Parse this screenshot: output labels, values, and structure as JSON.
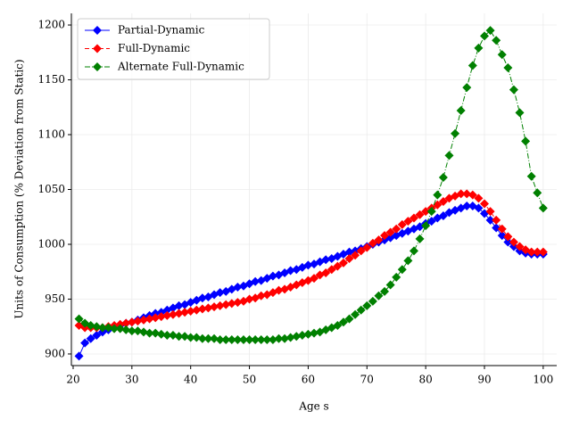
{
  "chart_data": {
    "type": "line",
    "xlabel": "Age s",
    "ylabel": "Units of Consumption (% Deviation from Static)",
    "x": [
      21,
      22,
      23,
      24,
      25,
      26,
      27,
      28,
      29,
      30,
      31,
      32,
      33,
      34,
      35,
      36,
      37,
      38,
      39,
      40,
      41,
      42,
      43,
      44,
      45,
      46,
      47,
      48,
      49,
      50,
      51,
      52,
      53,
      54,
      55,
      56,
      57,
      58,
      59,
      60,
      61,
      62,
      63,
      64,
      65,
      66,
      67,
      68,
      69,
      70,
      71,
      72,
      73,
      74,
      75,
      76,
      77,
      78,
      79,
      80,
      81,
      82,
      83,
      84,
      85,
      86,
      87,
      88,
      89,
      90,
      91,
      92,
      93,
      94,
      95,
      96,
      97,
      98,
      99,
      100
    ],
    "series": [
      {
        "name": "Partial-Dynamic",
        "color": "#0000ff",
        "dash": "",
        "values": [
          898,
          910,
          914,
          917,
          920,
          922,
          924,
          926,
          928,
          929,
          931,
          933,
          935,
          937,
          938,
          940,
          942,
          944,
          945,
          947,
          949,
          951,
          952,
          954,
          956,
          957,
          959,
          961,
          962,
          964,
          966,
          967,
          969,
          971,
          972,
          974,
          976,
          977,
          979,
          981,
          982,
          984,
          986,
          987,
          989,
          991,
          993,
          994,
          996,
          998,
          1000,
          1002,
          1004,
          1006,
          1008,
          1010,
          1012,
          1014,
          1016,
          1019,
          1021,
          1024,
          1026,
          1029,
          1031,
          1033,
          1035,
          1035,
          1033,
          1028,
          1022,
          1015,
          1008,
          1002,
          998,
          994,
          992,
          991,
          991,
          991
        ]
      },
      {
        "name": "Full-Dynamic",
        "color": "#ff0000",
        "dash": "5,3",
        "values": [
          926,
          924,
          924,
          924,
          924,
          925,
          926,
          927,
          928,
          929,
          930,
          931,
          932,
          933,
          934,
          935,
          936,
          937,
          938,
          939,
          940,
          941,
          942,
          943,
          944,
          945,
          946,
          947,
          948,
          950,
          951,
          953,
          954,
          956,
          958,
          959,
          961,
          963,
          965,
          967,
          969,
          972,
          974,
          977,
          980,
          983,
          987,
          990,
          994,
          997,
          1001,
          1004,
          1008,
          1011,
          1014,
          1018,
          1021,
          1024,
          1027,
          1030,
          1033,
          1036,
          1039,
          1042,
          1044,
          1046,
          1046,
          1045,
          1042,
          1037,
          1030,
          1022,
          1014,
          1007,
          1002,
          998,
          995,
          993,
          993,
          993
        ]
      },
      {
        "name": "Alternate Full-Dynamic",
        "color": "#008000",
        "dash": "6,2,1,2",
        "values": [
          932,
          928,
          926,
          925,
          924,
          924,
          923,
          923,
          922,
          921,
          921,
          920,
          919,
          919,
          918,
          917,
          917,
          916,
          916,
          915,
          915,
          914,
          914,
          914,
          913,
          913,
          913,
          913,
          913,
          913,
          913,
          913,
          913,
          913,
          914,
          914,
          915,
          916,
          917,
          918,
          919,
          920,
          922,
          924,
          926,
          929,
          932,
          936,
          940,
          944,
          948,
          953,
          957,
          963,
          970,
          977,
          985,
          994,
          1005,
          1017,
          1030,
          1045,
          1061,
          1081,
          1101,
          1122,
          1143,
          1163,
          1179,
          1190,
          1195,
          1186,
          1173,
          1161,
          1141,
          1120,
          1094,
          1062,
          1047,
          1033
        ]
      }
    ],
    "xlim": [
      19.7,
      102.3
    ],
    "ylim": [
      889.4,
      1210.6
    ],
    "xticks": [
      20,
      30,
      40,
      50,
      60,
      70,
      80,
      90,
      100
    ],
    "yticks": [
      900,
      950,
      1000,
      1050,
      1100,
      1150,
      1200
    ],
    "grid": true,
    "legend": "upper left"
  }
}
